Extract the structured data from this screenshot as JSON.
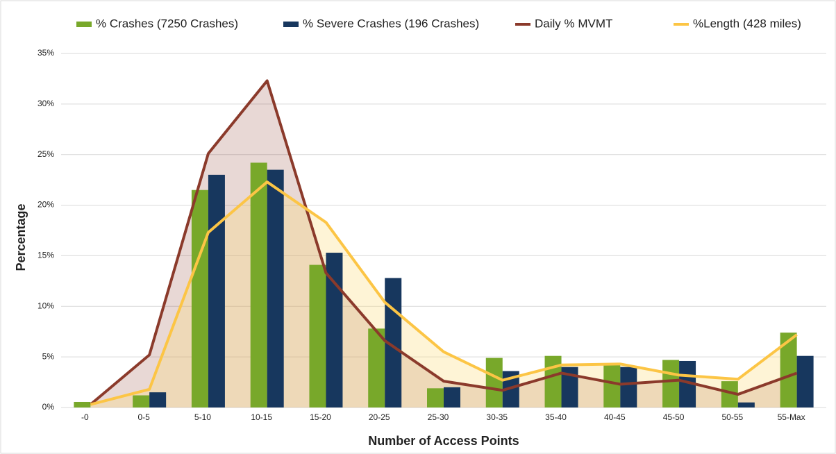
{
  "chart_data": {
    "type": "bar",
    "categories": [
      "-0",
      "0-5",
      "5-10",
      "10-15",
      "15-20",
      "20-25",
      "25-30",
      "30-35",
      "35-40",
      "40-45",
      "45-50",
      "50-55",
      "55-Max"
    ],
    "series": [
      {
        "name": "% Crashes (7250 Crashes)",
        "kind": "bar",
        "color": "#78a82a",
        "values": [
          0.55,
          1.2,
          21.5,
          24.2,
          14.1,
          7.8,
          1.9,
          4.9,
          5.1,
          4.2,
          4.7,
          2.6,
          7.4
        ]
      },
      {
        "name": "% Severe Crashes (196 Crashes)",
        "kind": "bar",
        "color": "#17375e",
        "values": [
          0,
          1.5,
          23.0,
          23.5,
          15.3,
          12.8,
          2.0,
          3.6,
          4.0,
          4.0,
          4.6,
          0.5,
          5.1
        ]
      },
      {
        "name": "Daily % MVMT",
        "kind": "line",
        "color": "#8b3a2b",
        "fill": "rgba(139,58,43,0.2)",
        "values": [
          0.3,
          5.2,
          25.1,
          32.3,
          13.3,
          6.6,
          2.6,
          1.7,
          3.4,
          2.3,
          2.7,
          1.3,
          3.4
        ]
      },
      {
        "name": "%Length (428 miles)",
        "kind": "line",
        "color": "#fcc545",
        "fill": "rgba(252,220,120,0.3)",
        "values": [
          0.3,
          1.8,
          17.3,
          22.3,
          18.3,
          10.4,
          5.5,
          2.7,
          4.2,
          4.3,
          3.2,
          2.8,
          7.2
        ]
      }
    ],
    "ylim": [
      0,
      35
    ],
    "yticks": [
      {
        "value": 0,
        "label": "0%"
      },
      {
        "value": 5,
        "label": "5%"
      },
      {
        "value": 10,
        "label": "10%"
      },
      {
        "value": 15,
        "label": "15%"
      },
      {
        "value": 20,
        "label": "20%"
      },
      {
        "value": 25,
        "label": "25%"
      },
      {
        "value": 30,
        "label": "30%"
      },
      {
        "value": 35,
        "label": "35%"
      }
    ],
    "y_label": "Percentage",
    "x_label": "Number of Access Points",
    "grid": true,
    "legend": "top"
  }
}
